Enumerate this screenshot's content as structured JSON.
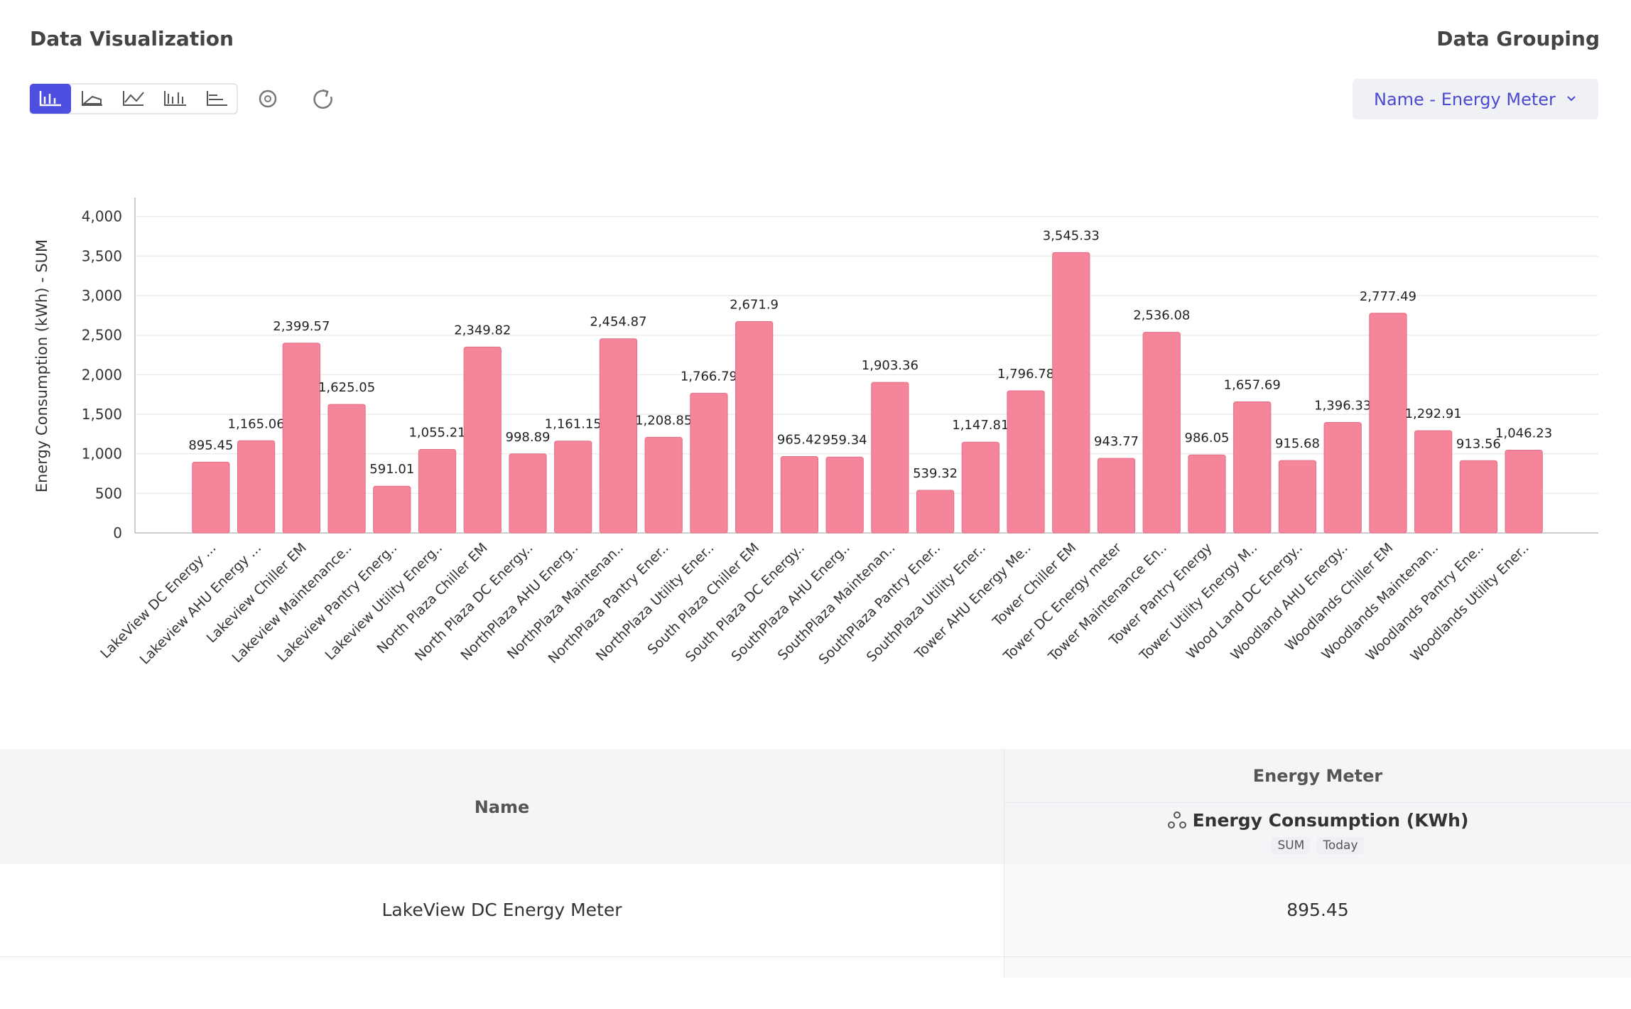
{
  "header": {
    "title": "Data Visualization",
    "grouping_title": "Data Grouping",
    "grouping_value": "Name - Energy Meter"
  },
  "chart_data": {
    "type": "bar",
    "y_label": "Energy Consumption (kWh) - SUM",
    "color": "#f4859a",
    "grid": true,
    "categories": [
      "LakeView DC Energy ...",
      "Lakeview AHU Energy ...",
      "Lakeview Chiller EM",
      "Lakeview Maintenance..",
      "Lakeview Pantry Energ..",
      "Lakeview Utility Energ..",
      "North Plaza Chiller EM",
      "North Plaza DC Energy..",
      "NorthPlaza AHU Energ..",
      "NorthPlaza Maintenan..",
      "NorthPlaza Pantry Ener..",
      "NorthPlaza Utility Ener..",
      "South Plaza Chiller EM",
      "South Plaza DC Energy..",
      "SouthPlaza AHU Energ..",
      "SouthPlaza Maintenan..",
      "SouthPlaza Pantry Ener..",
      "SouthPlaza Utility Ener..",
      "Tower AHU Energy Me..",
      "Tower Chiller EM",
      "Tower DC Energy meter",
      "Tower Maintenance En..",
      "Tower Pantry Energy",
      "Tower Utility Energy M..",
      "Wood Land DC Energy..",
      "Woodland AHU Energy..",
      "Woodlands Chiller EM",
      "Woodlands Maintenan..",
      "Woodlands Pantry Ene..",
      "Woodlands Utility Ener.."
    ],
    "values": [
      895.45,
      1165.06,
      2399.57,
      1625.05,
      591.01,
      1055.21,
      2349.82,
      998.89,
      1161.15,
      2454.87,
      1208.85,
      1766.79,
      2671.9,
      965.42,
      959.34,
      1903.36,
      539.32,
      1147.81,
      1796.78,
      3545.33,
      943.77,
      2536.08,
      986.05,
      1657.69,
      915.68,
      1396.33,
      2777.49,
      1292.91,
      913.56,
      1046.23
    ],
    "value_labels": [
      "895.45",
      "1,165.06",
      "2,399.57",
      "1,625.05",
      "591.01",
      "1,055.21",
      "2,349.82",
      "998.89",
      "1,161.15",
      "2,454.87",
      "1,208.85",
      "1,766.79",
      "2,671.9",
      "965.42",
      "959.34",
      "1,903.36",
      "539.32",
      "1,147.81",
      "1,796.78",
      "3,545.33",
      "943.77",
      "2,536.08",
      "986.05",
      "1,657.69",
      "915.68",
      "1,396.33",
      "2,777.49",
      "1,292.91",
      "913.56",
      "1,046.23"
    ],
    "ylim": [
      0,
      4240
    ],
    "yticks": [
      0,
      500,
      {
        "value": 1000,
        "label": "1,000"
      },
      {
        "value": 1500,
        "label": "1,500"
      },
      {
        "value": 2000,
        "label": "2,000"
      },
      {
        "value": 2500,
        "label": "2,500"
      },
      {
        "value": 3000,
        "label": "3,000"
      },
      {
        "value": 3500,
        "label": "3,500"
      },
      {
        "value": 4000,
        "label": "4,000"
      }
    ]
  },
  "table": {
    "headers": {
      "name": "Name",
      "group": "Energy Meter",
      "measure": "Energy Consumption (KWh)",
      "aggregate": "SUM",
      "period": "Today"
    },
    "rows": [
      [
        "LakeView DC Energy Meter",
        "895.45"
      ]
    ]
  }
}
